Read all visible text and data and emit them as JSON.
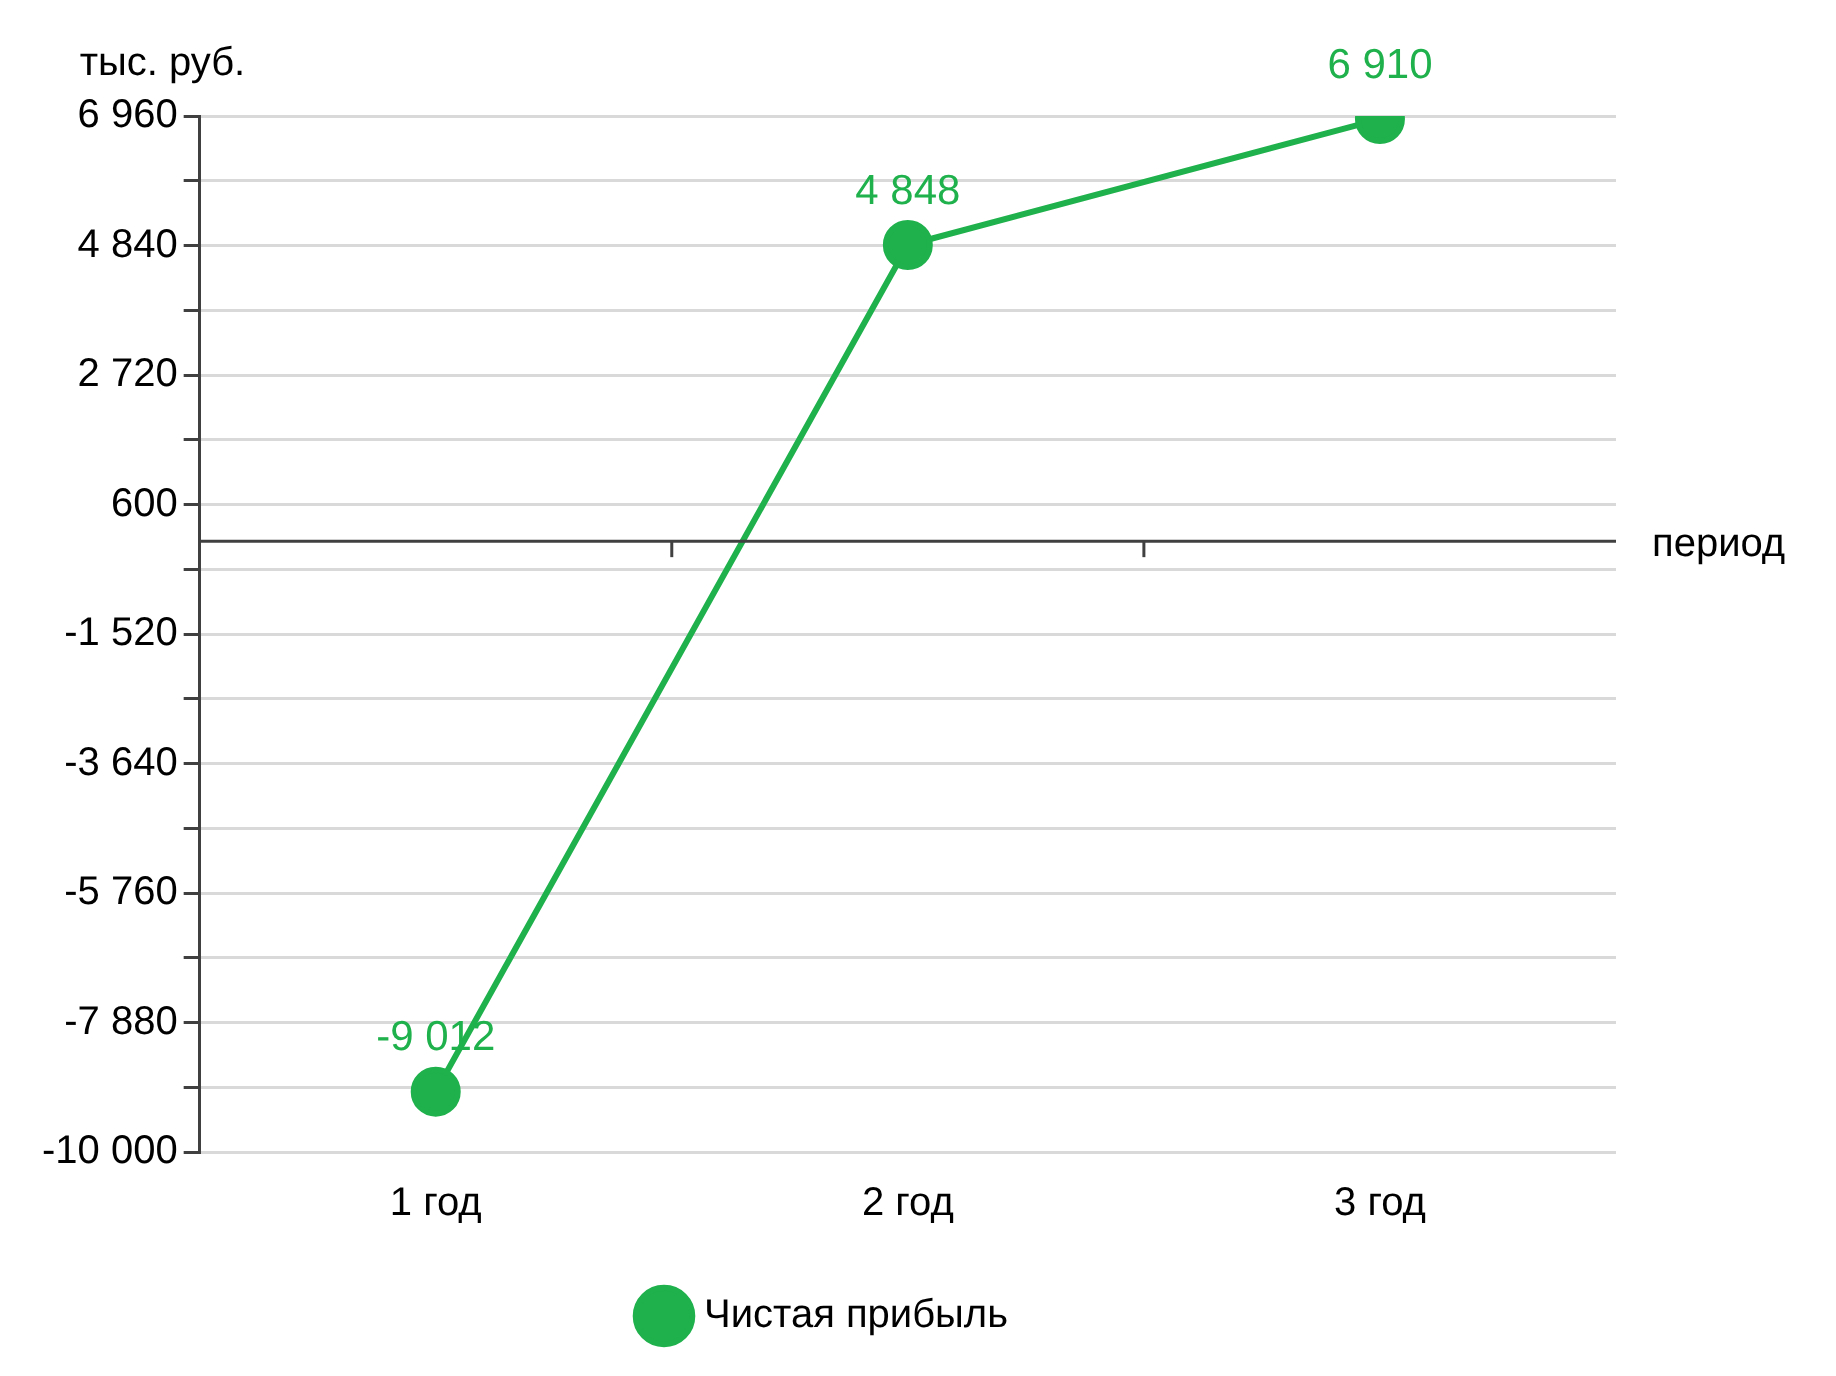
{
  "chart_data": {
    "type": "line",
    "ylabel": "тыс. руб.",
    "xlabel": "период",
    "categories": [
      "1 год",
      "2 год",
      "3 год"
    ],
    "series": [
      {
        "name": "Чистая прибыль",
        "color": "#1fb14c",
        "values": [
          -9012,
          4848,
          6910
        ],
        "value_labels": [
          "-9 012",
          "4 848",
          "6 910"
        ]
      }
    ],
    "ylim": [
      -10000,
      6960
    ],
    "yticks": [
      {
        "value": -10000,
        "label": "-10 000"
      },
      {
        "value": -8940,
        "label": null
      },
      {
        "value": -7880,
        "label": "-7 880"
      },
      {
        "value": -6820,
        "label": null
      },
      {
        "value": -5760,
        "label": "-5 760"
      },
      {
        "value": -4700,
        "label": null
      },
      {
        "value": -3640,
        "label": "-3 640"
      },
      {
        "value": -2580,
        "label": null
      },
      {
        "value": -1520,
        "label": "-1 520"
      },
      {
        "value": -460,
        "label": null
      },
      {
        "value": 600,
        "label": "600"
      },
      {
        "value": 1660,
        "label": null
      },
      {
        "value": 2720,
        "label": "2 720"
      },
      {
        "value": 3780,
        "label": null
      },
      {
        "value": 4840,
        "label": "4 840"
      },
      {
        "value": 5900,
        "label": null
      },
      {
        "value": 6960,
        "label": "6 960"
      }
    ],
    "grid": "y",
    "legend": "bottom",
    "marker": "circle",
    "line_style": "solid"
  }
}
